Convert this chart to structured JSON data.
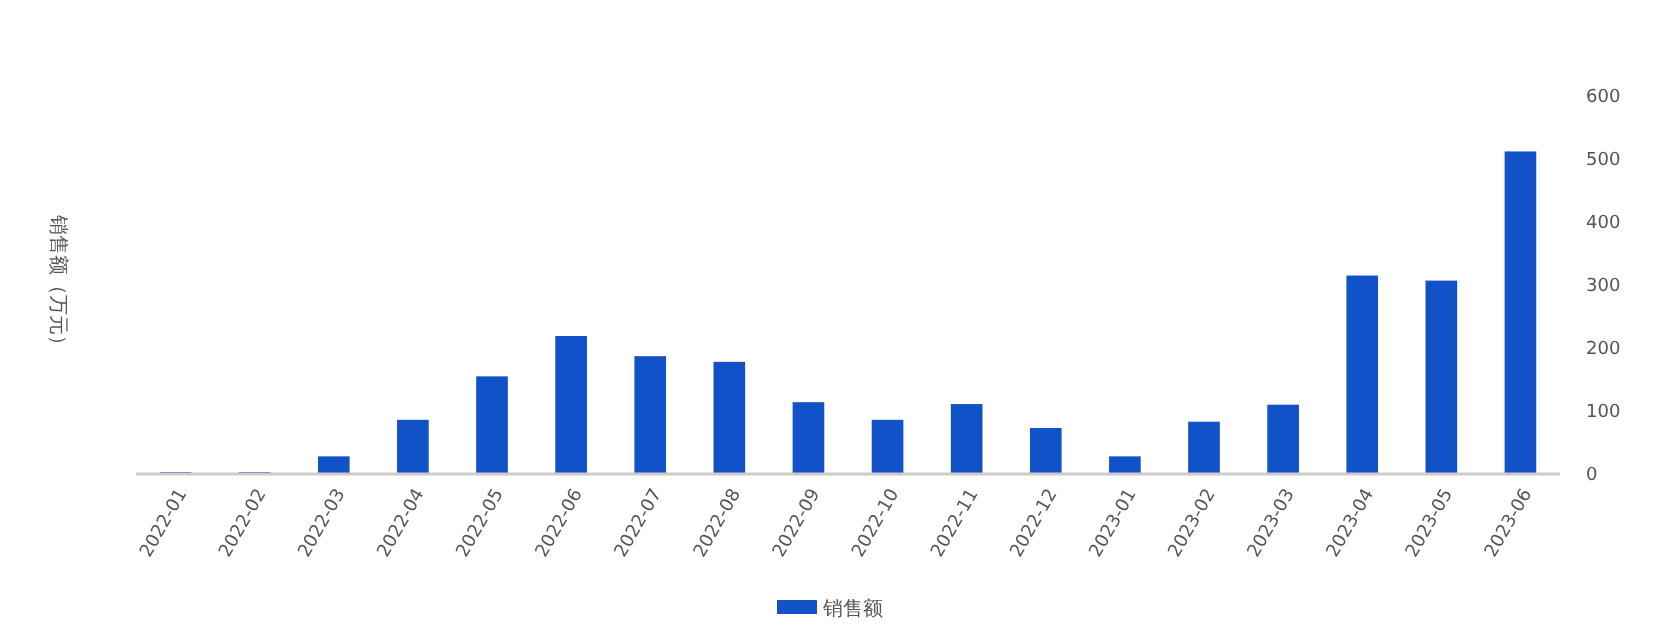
{
  "chart_data": {
    "type": "bar",
    "ylabel": "销售额（万元）",
    "categories": [
      "2022-01",
      "2022-02",
      "2022-03",
      "2022-04",
      "2022-05",
      "2022-06",
      "2022-07",
      "2022-08",
      "2022-09",
      "2022-10",
      "2022-11",
      "2022-12",
      "2023-01",
      "2023-02",
      "2023-03",
      "2023-04",
      "2023-05",
      "2023-06"
    ],
    "series": [
      {
        "name": "销售额",
        "color": "#1152c8",
        "values": [
          3,
          3,
          28,
          86,
          155,
          219,
          187,
          178,
          114,
          86,
          111,
          73,
          28,
          83,
          110,
          315,
          307,
          512
        ]
      }
    ],
    "ylim": [
      0,
      600
    ],
    "yticks": [
      0,
      100,
      200,
      300,
      400,
      500,
      600
    ],
    "grid": false,
    "legend": "bottom"
  }
}
